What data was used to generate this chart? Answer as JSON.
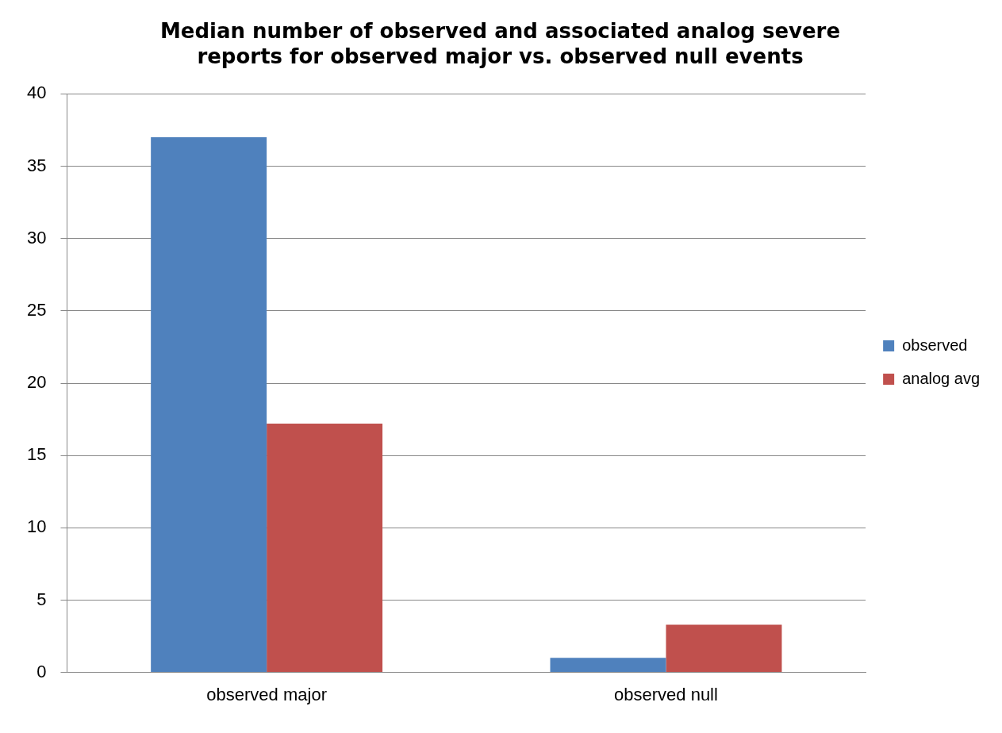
{
  "chart_data": {
    "type": "bar",
    "title": [
      "Median number of observed and associated analog severe",
      "reports for observed major vs. observed null events"
    ],
    "categories": [
      "observed major",
      "observed null"
    ],
    "series": [
      {
        "name": "observed",
        "color": "#4f81bd",
        "values": [
          37,
          1
        ]
      },
      {
        "name": "analog avg",
        "color": "#c0504d",
        "values": [
          17.2,
          3.3
        ]
      }
    ],
    "ylim": [
      0,
      40
    ],
    "yticks": [
      0,
      5,
      10,
      15,
      20,
      25,
      30,
      35,
      40
    ],
    "grid": "y",
    "legend": "right"
  }
}
